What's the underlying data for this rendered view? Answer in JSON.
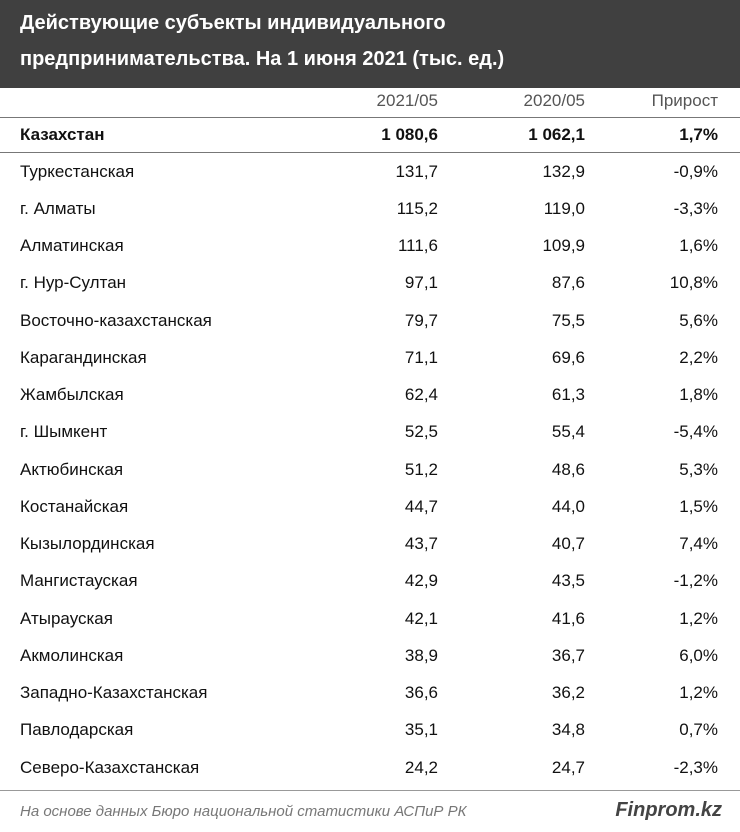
{
  "header": {
    "title": [
      "Действующие субъекты индивидуального",
      "предпринимательства. На 1 июня 2021 (тыс. ед.)"
    ]
  },
  "table": {
    "columns": [
      "2021/05",
      "2020/05",
      "Прирост"
    ],
    "rows": [
      [
        "Казахстан",
        "1 080,6",
        "1 062,1",
        "1,7%"
      ],
      [
        "Туркестанская",
        "131,7",
        "132,9",
        "-0,9%"
      ],
      [
        "г. Алматы",
        "115,2",
        "119,0",
        "-3,3%"
      ],
      [
        "Алматинская",
        "111,6",
        "109,9",
        "1,6%"
      ],
      [
        "г. Нур-Султан",
        "97,1",
        "87,6",
        "10,8%"
      ],
      [
        "Восточно-казахстанская",
        "79,7",
        "75,5",
        "5,6%"
      ],
      [
        "Карагандинская",
        "71,1",
        "69,6",
        "2,2%"
      ],
      [
        "Жамбылская",
        "62,4",
        "61,3",
        "1,8%"
      ],
      [
        "г. Шымкент",
        "52,5",
        "55,4",
        "-5,4%"
      ],
      [
        "Актюбинская",
        "51,2",
        "48,6",
        "5,3%"
      ],
      [
        "Костанайская",
        "44,7",
        "44,0",
        "1,5%"
      ],
      [
        "Кызылординская",
        "43,7",
        "40,7",
        "7,4%"
      ],
      [
        "Мангистауская",
        "42,9",
        "43,5",
        "-1,2%"
      ],
      [
        "Атырауская",
        "42,1",
        "41,6",
        "1,2%"
      ],
      [
        "Акмолинская",
        "38,9",
        "36,7",
        "6,0%"
      ],
      [
        "Западно-Казахстанская",
        "36,6",
        "36,2",
        "1,2%"
      ],
      [
        "Павлодарская",
        "35,1",
        "34,8",
        "0,7%"
      ],
      [
        "Северо-Казахстанская",
        "24,2",
        "24,7",
        "-2,3%"
      ]
    ]
  },
  "footer": {
    "source": "На основе данных Бюро национальной статистики АСПиР РК",
    "brand": "Finprom.kz"
  }
}
